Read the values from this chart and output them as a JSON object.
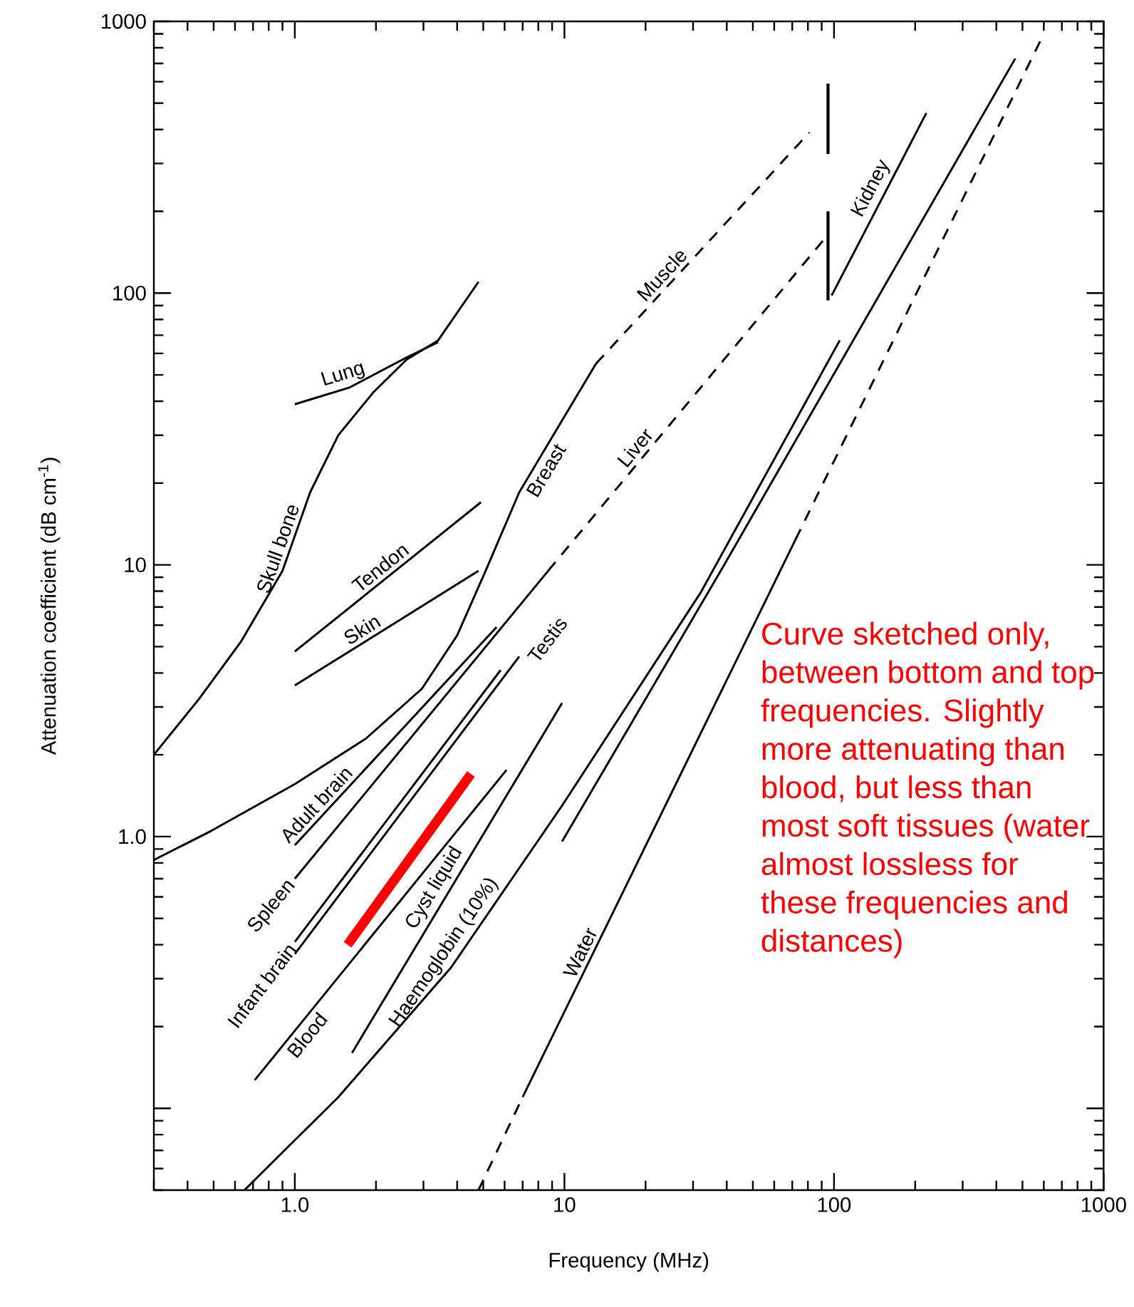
{
  "chart_data": {
    "type": "line",
    "xlabel": "Frequency (MHz)",
    "ylabel": "Attenuation coefficient (dB cm$^{-1}$)",
    "log": "xy",
    "xlim": [
      0.3,
      1000
    ],
    "ylim": [
      0.05,
      1000
    ],
    "xticks": [
      {
        "value": 1,
        "label": "1.0"
      },
      10,
      100,
      1000
    ],
    "yticks": [
      {
        "value": 0.1,
        "label": null
      },
      {
        "value": 1,
        "label": "1.0"
      },
      10,
      100,
      1000
    ],
    "series": [
      {
        "name": "Lung",
        "color": "#000000",
        "line_style": "solid",
        "x": [
          1.0,
          1.6,
          2.6,
          3.4
        ],
        "values": [
          39,
          45,
          58,
          66
        ]
      },
      {
        "name": "Skull bone",
        "color": "#000000",
        "line_style": "solid",
        "x": [
          0.3,
          0.44,
          0.63,
          0.9,
          1.14,
          1.45,
          1.95,
          2.6,
          3.4,
          4.8
        ],
        "values": [
          2.0,
          3.2,
          5.2,
          9.5,
          18.5,
          30,
          43,
          57,
          67,
          110
        ]
      },
      {
        "name": "Tendon",
        "color": "#000000",
        "line_style": "solid",
        "x": [
          1.0,
          4.9
        ],
        "values": [
          4.8,
          17
        ]
      },
      {
        "name": "Skin",
        "color": "#000000",
        "line_style": "solid",
        "x": [
          1.0,
          4.8
        ],
        "values": [
          3.6,
          9.5
        ]
      },
      {
        "name": "Breast",
        "color": "#000000",
        "line_style": "solid",
        "x": [
          0.3,
          0.49,
          1.0,
          1.84,
          2.96,
          4.0,
          5.1,
          6.8,
          9.8,
          13.1
        ],
        "values": [
          0.82,
          1.05,
          1.56,
          2.3,
          3.5,
          5.5,
          9.5,
          18.5,
          34,
          55
        ]
      },
      {
        "name": "Muscle",
        "color": "#000000",
        "line_style": "dashed",
        "x": [
          13.1,
          81
        ],
        "values": [
          55,
          390
        ]
      },
      {
        "name": "Adult brain",
        "color": "#000000",
        "line_style": "solid",
        "x": [
          1.0,
          5.6
        ],
        "values": [
          0.93,
          5.9
        ]
      },
      {
        "name": "Spleen",
        "color": "#000000",
        "line_style": "solid",
        "x": [
          1.0,
          8.7
        ],
        "values": [
          0.7,
          9.5
        ]
      },
      {
        "name": "Liver",
        "color": "#000000",
        "line_style": "dashed",
        "x": [
          8.7,
          91
        ],
        "values": [
          9.5,
          156
        ]
      },
      {
        "name": "Infant brain",
        "color": "#000000",
        "line_style": "solid",
        "x": [
          1.0,
          5.8
        ],
        "values": [
          0.41,
          4.1
        ]
      },
      {
        "name": "Testis",
        "color": "#000000",
        "line_style": "solid",
        "x": [
          1.0,
          6.8
        ],
        "values": [
          0.37,
          4.6
        ]
      },
      {
        "name": "Blood",
        "color": "#000000",
        "line_style": "solid",
        "x": [
          0.71,
          6.1
        ],
        "values": [
          0.127,
          1.76
        ]
      },
      {
        "name": "Cyst liquid",
        "color": "#000000",
        "line_style": "solid",
        "x": [
          1.63,
          9.8
        ],
        "values": [
          0.16,
          3.1
        ]
      },
      {
        "name": "Haemoglobin (10%)",
        "color": "#000000",
        "line_style": "solid",
        "x": [
          0.65,
          1.45,
          3.8,
          9.8,
          32,
          105
        ],
        "values": [
          0.05,
          0.11,
          0.33,
          1.3,
          7.9,
          67
        ]
      },
      {
        "color": "#000000",
        "line_style": "solid",
        "x": [
          9.8,
          38,
          470
        ],
        "values": [
          0.96,
          9.5,
          730
        ]
      },
      {
        "color": "#000000",
        "line_style": "dashed",
        "x": [
          4.8,
          7.0
        ],
        "values": [
          0.05,
          0.11
        ]
      },
      {
        "name": "Water",
        "color": "#000000",
        "line_style": "solid",
        "x": [
          7.0,
          72
        ],
        "values": [
          0.11,
          12.4
        ]
      },
      {
        "color": "#000000",
        "line_style": "dashed",
        "x": [
          72,
          600
        ],
        "values": [
          12.4,
          900
        ]
      },
      {
        "name": "Kidney",
        "color": "#000000",
        "line_style": "solid",
        "x": [
          98,
          220
        ],
        "values": [
          98,
          460
        ]
      },
      {
        "color": "#ff0000",
        "line_style": "solid",
        "x": [
          1.57,
          4.5
        ],
        "values": [
          0.4,
          1.7
        ]
      },
      {
        "color": "#000000",
        "line_style": "solid",
        "x": [
          95,
          95
        ],
        "values": [
          325,
          590
        ]
      },
      {
        "color": "#000000",
        "line_style": "solid",
        "x": [
          95,
          95
        ],
        "values": [
          94,
          200
        ]
      }
    ],
    "annotations": [
      "Curve sketched only, between bottom and top frequencies. Slightly more attenuating than blood, but less than most soft tissues (water almost lossless for these frequencies and distances)"
    ]
  }
}
